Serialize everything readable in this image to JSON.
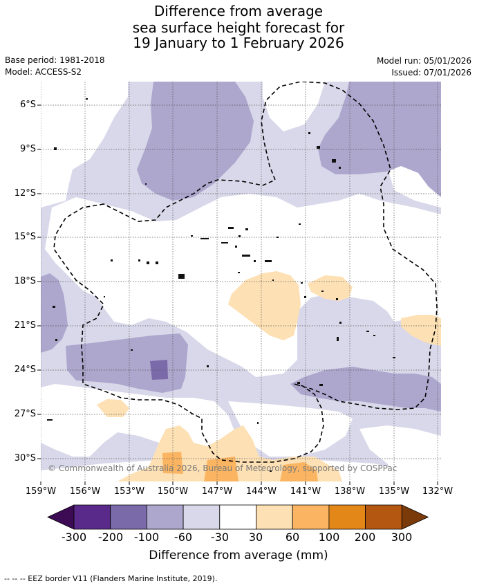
{
  "title": {
    "line1": "Difference from average",
    "line2": "sea surface height forecast for",
    "line3": "19 January to 1 February 2026"
  },
  "meta": {
    "base_period": "Base period: 1981-2018",
    "model": "Model: ACCESS-S2",
    "model_run": "Model run: 05/01/2026",
    "issued": "Issued: 07/01/2026"
  },
  "map": {
    "lat_labels": [
      "6°S",
      "9°S",
      "12°S",
      "15°S",
      "18°S",
      "21°S",
      "24°S",
      "27°S",
      "30°S"
    ],
    "lon_labels": [
      "159°W",
      "156°W",
      "153°W",
      "150°W",
      "147°W",
      "144°W",
      "141°W",
      "138°W",
      "135°W",
      "132°W"
    ],
    "copyright": "© Commonwealth of Australia 2026, Bureau of Meteorology, supported by COSPPac"
  },
  "colorbar": {
    "ticks": [
      "-300",
      "-200",
      "-100",
      "-60",
      "-30",
      "30",
      "60",
      "100",
      "200",
      "300"
    ],
    "colors": [
      "#3d0b54",
      "#5a2a8a",
      "#7b6aa9",
      "#ada6cd",
      "#d8d8ea",
      "#ffffff",
      "#fde0b4",
      "#fbb562",
      "#e38719",
      "#b45710",
      "#7a3a0a"
    ],
    "title": "Difference from average (mm)"
  },
  "footnote": "--  --  -- EEZ border V11 (Flanders Marine Institute, 2019)."
}
